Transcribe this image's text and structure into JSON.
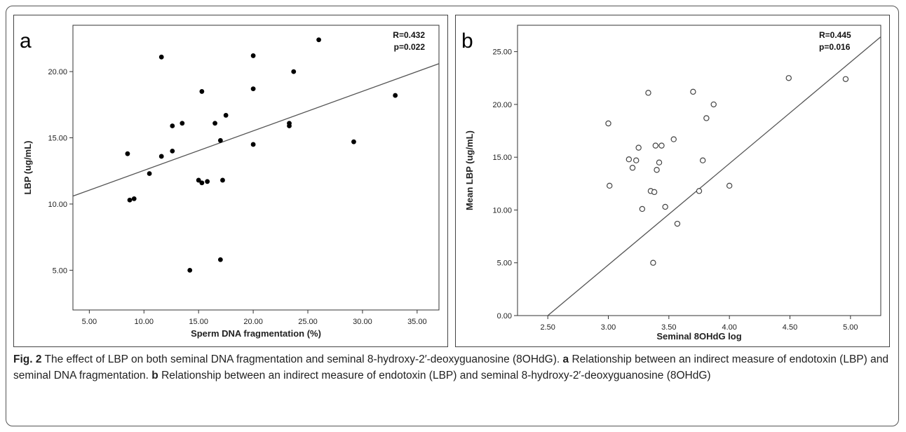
{
  "chart_data": [
    {
      "type": "scatter",
      "panel_label": "a",
      "xlabel": "Sperm DNA fragmentation (%)",
      "ylabel": "LBP (ug/mL)",
      "xlim": [
        3.5,
        37.0
      ],
      "ylim": [
        2.0,
        23.5
      ],
      "xticks": [
        "5.00",
        "10.00",
        "15.00",
        "20.00",
        "25.00",
        "30.00",
        "35.00"
      ],
      "xtick_values": [
        5,
        10,
        15,
        20,
        25,
        30,
        35
      ],
      "yticks": [
        "5.00",
        "10.00",
        "15.00",
        "20.00"
      ],
      "ytick_values": [
        5,
        10,
        15,
        20
      ],
      "annotation_lines": [
        "R=0.432",
        "p=0.022"
      ],
      "marker": "filled",
      "fit_line": {
        "x": [
          3.5,
          37.0
        ],
        "y": [
          10.6,
          20.6
        ]
      },
      "points": [
        {
          "x": 8.5,
          "y": 13.8
        },
        {
          "x": 8.7,
          "y": 10.3
        },
        {
          "x": 9.1,
          "y": 10.4
        },
        {
          "x": 10.5,
          "y": 12.3
        },
        {
          "x": 11.6,
          "y": 21.1
        },
        {
          "x": 11.6,
          "y": 13.6
        },
        {
          "x": 12.6,
          "y": 15.9
        },
        {
          "x": 12.6,
          "y": 14.0
        },
        {
          "x": 13.5,
          "y": 16.1
        },
        {
          "x": 14.2,
          "y": 5.0
        },
        {
          "x": 15.0,
          "y": 11.8
        },
        {
          "x": 15.3,
          "y": 11.6
        },
        {
          "x": 15.3,
          "y": 18.5
        },
        {
          "x": 15.8,
          "y": 11.7
        },
        {
          "x": 16.5,
          "y": 16.1
        },
        {
          "x": 17.0,
          "y": 14.8
        },
        {
          "x": 17.2,
          "y": 11.8
        },
        {
          "x": 17.0,
          "y": 5.8
        },
        {
          "x": 17.5,
          "y": 16.7
        },
        {
          "x": 20.0,
          "y": 21.2
        },
        {
          "x": 20.0,
          "y": 18.7
        },
        {
          "x": 20.0,
          "y": 14.5
        },
        {
          "x": 23.3,
          "y": 15.9
        },
        {
          "x": 23.3,
          "y": 16.1
        },
        {
          "x": 23.7,
          "y": 20.0
        },
        {
          "x": 26.0,
          "y": 22.4
        },
        {
          "x": 29.2,
          "y": 14.7
        },
        {
          "x": 33.0,
          "y": 18.2
        }
      ]
    },
    {
      "type": "scatter",
      "panel_label": "b",
      "xlabel": "Seminal 8OHdG log",
      "ylabel": "Mean LBP (ug/mL)",
      "xlim": [
        2.25,
        5.25
      ],
      "ylim": [
        0.0,
        27.5
      ],
      "xticks": [
        "2.50",
        "3.00",
        "3.50",
        "4.00",
        "4.50",
        "5.00"
      ],
      "xtick_values": [
        2.5,
        3.0,
        3.5,
        4.0,
        4.5,
        5.0
      ],
      "yticks": [
        "0.00",
        "5.00",
        "10.00",
        "15.00",
        "20.00",
        "25.00"
      ],
      "ytick_values": [
        0,
        5,
        10,
        15,
        20,
        25
      ],
      "annotation_lines": [
        "R=0.445",
        "p=0.016"
      ],
      "marker": "open",
      "fit_line": {
        "x": [
          2.5,
          5.25
        ],
        "y": [
          0.0,
          26.4
        ]
      },
      "points": [
        {
          "x": 3.0,
          "y": 18.2
        },
        {
          "x": 3.01,
          "y": 12.3
        },
        {
          "x": 3.17,
          "y": 14.8
        },
        {
          "x": 3.2,
          "y": 14.0
        },
        {
          "x": 3.23,
          "y": 14.7
        },
        {
          "x": 3.25,
          "y": 15.9
        },
        {
          "x": 3.28,
          "y": 10.1
        },
        {
          "x": 3.33,
          "y": 21.1
        },
        {
          "x": 3.35,
          "y": 11.8
        },
        {
          "x": 3.37,
          "y": 5.0
        },
        {
          "x": 3.38,
          "y": 11.7
        },
        {
          "x": 3.39,
          "y": 16.1
        },
        {
          "x": 3.4,
          "y": 13.8
        },
        {
          "x": 3.42,
          "y": 14.5
        },
        {
          "x": 3.44,
          "y": 16.1
        },
        {
          "x": 3.47,
          "y": 10.3
        },
        {
          "x": 3.54,
          "y": 16.7
        },
        {
          "x": 3.57,
          "y": 8.7
        },
        {
          "x": 3.7,
          "y": 21.2
        },
        {
          "x": 3.75,
          "y": 11.8
        },
        {
          "x": 3.78,
          "y": 14.7
        },
        {
          "x": 3.81,
          "y": 18.7
        },
        {
          "x": 3.87,
          "y": 20.0
        },
        {
          "x": 4.0,
          "y": 12.3
        },
        {
          "x": 4.49,
          "y": 22.5
        },
        {
          "x": 4.96,
          "y": 22.4
        }
      ]
    }
  ],
  "caption": {
    "fig_label": "Fig. 2",
    "title": "The effect of LBP on both seminal DNA fragmentation and seminal 8-hydroxy-2′-deoxyguanosine (8OHdG).",
    "a_label": "a",
    "a_text": "Relationship between an indirect measure of endotoxin (LBP) and seminal DNA fragmentation.",
    "b_label": "b",
    "b_text": "Relationship between an indirect measure of endotoxin (LBP) and seminal 8-hydroxy-2′-deoxyguanosine (8OHdG)"
  }
}
